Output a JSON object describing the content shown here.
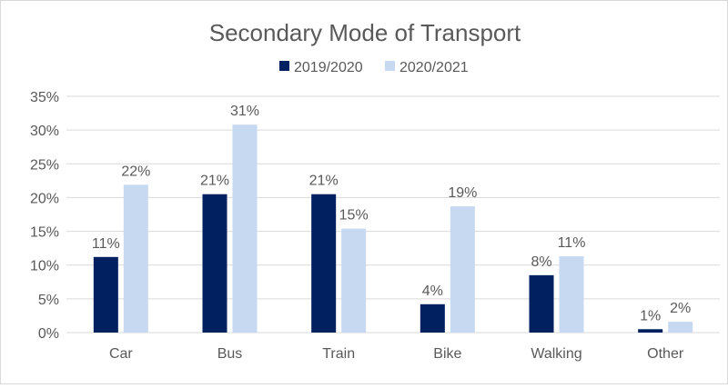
{
  "chart_data": {
    "type": "bar",
    "title": "Secondary Mode of Transport",
    "categories": [
      "Car",
      "Bus",
      "Train",
      "Bike",
      "Walking",
      "Other"
    ],
    "series": [
      {
        "name": "2019/2020",
        "color": "#002060",
        "values": [
          11.2,
          20.5,
          20.5,
          4.2,
          8.5,
          0.5
        ],
        "labels": [
          "11%",
          "21%",
          "21%",
          "4%",
          "8%",
          "1%"
        ]
      },
      {
        "name": "2020/2021",
        "color": "#C6D9F1",
        "values": [
          21.9,
          30.8,
          15.4,
          18.7,
          11.3,
          1.6
        ],
        "labels": [
          "22%",
          "31%",
          "15%",
          "19%",
          "11%",
          "2%"
        ]
      }
    ],
    "ylim": [
      0,
      35
    ],
    "yticks": [
      0,
      5,
      10,
      15,
      20,
      25,
      30,
      35
    ],
    "ytick_labels": [
      "0%",
      "5%",
      "10%",
      "15%",
      "20%",
      "25%",
      "30%",
      "35%"
    ],
    "grid": true,
    "legend_position": "top"
  }
}
